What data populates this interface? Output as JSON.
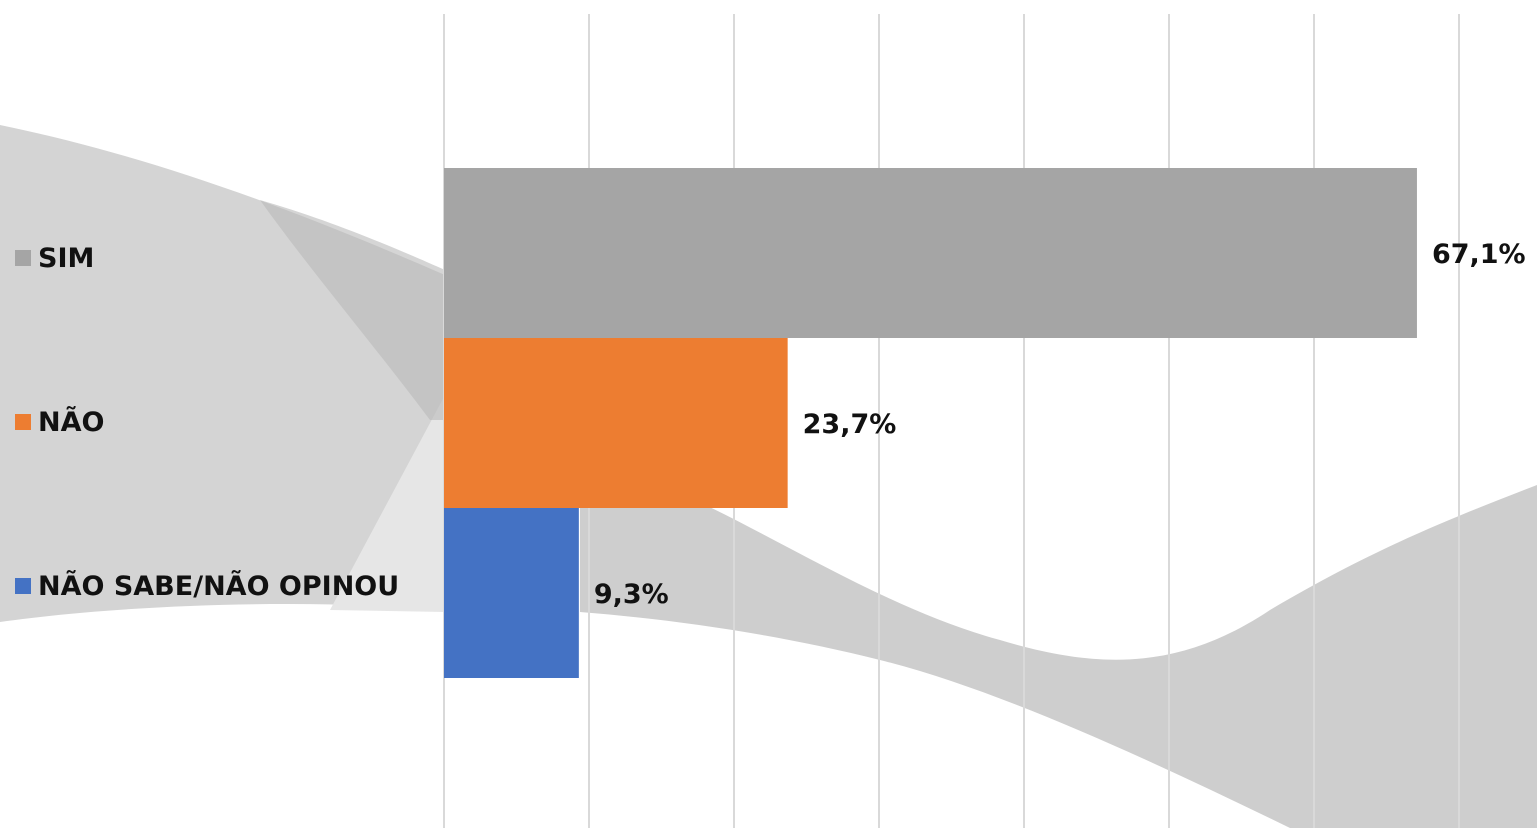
{
  "chart_data": {
    "type": "bar",
    "orientation": "horizontal",
    "categories": [
      "SIM",
      "NÃO",
      "NÃO SABE/NÃO OPINOU"
    ],
    "values": [
      67.1,
      23.7,
      9.3
    ],
    "value_labels": [
      "67,1%",
      "23,7%",
      "9,3%"
    ],
    "colors": [
      "#a5a5a5",
      "#ed7d31",
      "#4472c4"
    ],
    "xlim": [
      0,
      70
    ],
    "grid": true,
    "legend": "left",
    "title": "",
    "xlabel": "",
    "ylabel": ""
  }
}
